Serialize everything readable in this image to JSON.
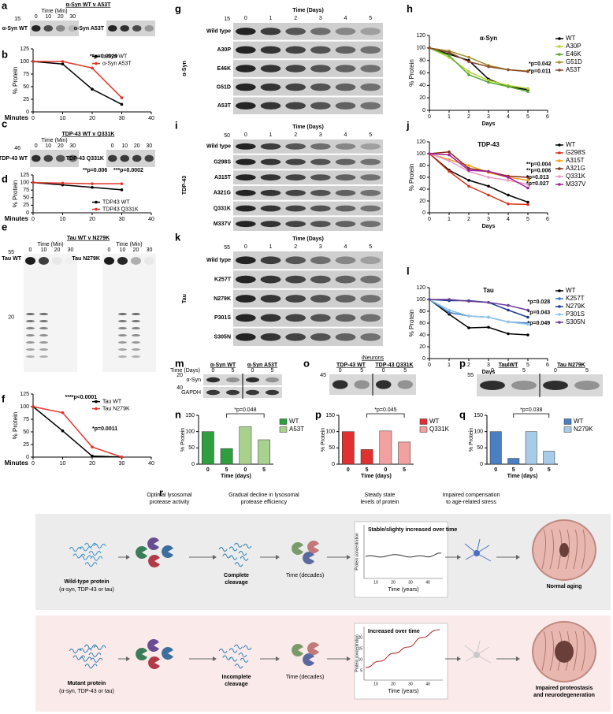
{
  "chart_data": [
    {
      "letter": "b",
      "type": "line",
      "x": [
        0,
        10,
        20,
        30
      ],
      "xlim": [
        0,
        40
      ],
      "xticks": [
        0,
        10,
        20,
        30,
        40
      ],
      "ylim": [
        0,
        125
      ],
      "yticks": [
        0,
        25,
        50,
        75,
        100,
        125
      ],
      "ylabel": "% Protein",
      "xlabel": "Minutes",
      "legend": "upper right",
      "series": [
        {
          "name": "α-Syn WT",
          "color": "#000000",
          "values": [
            100,
            95,
            45,
            15
          ]
        },
        {
          "name": "α-Syn A53T",
          "color": "#e0342a",
          "values": [
            100,
            100,
            87,
            28
          ]
        }
      ],
      "annotations": [
        {
          "text": "**p=0.0029"
        }
      ]
    },
    {
      "letter": "d",
      "type": "line",
      "x": [
        0,
        10,
        20,
        30
      ],
      "xlim": [
        0,
        40
      ],
      "xticks": [
        0,
        10,
        20,
        30,
        40
      ],
      "ylim": [
        0,
        125
      ],
      "yticks": [
        0,
        25,
        50,
        75,
        100,
        125
      ],
      "ylabel": "% Protein",
      "xlabel": "Minutes",
      "legend": "lower right",
      "series": [
        {
          "name": "TDP43 WT",
          "color": "#000000",
          "values": [
            100,
            92,
            84,
            76
          ]
        },
        {
          "name": "TDP43 Q331K",
          "color": "#e0342a",
          "values": [
            100,
            98,
            96,
            96
          ]
        }
      ],
      "annotations": [
        {
          "text": "**p=0.006"
        },
        {
          "text": "***p=0.0002"
        }
      ]
    },
    {
      "letter": "f",
      "type": "line",
      "x": [
        0,
        10,
        20,
        30
      ],
      "xlim": [
        0,
        40
      ],
      "xticks": [
        0,
        10,
        20,
        30,
        40
      ],
      "ylim": [
        0,
        125
      ],
      "yticks": [
        0,
        25,
        50,
        75,
        100,
        125
      ],
      "ylabel": "% Protein",
      "xlabel": "Minutes",
      "legend": "upper right",
      "series": [
        {
          "name": "Tau WT",
          "color": "#000000",
          "values": [
            100,
            52,
            2,
            0
          ]
        },
        {
          "name": "Tau N279K",
          "color": "#e0342a",
          "values": [
            100,
            88,
            20,
            0
          ]
        }
      ],
      "annotations": [
        {
          "text": "****p<0.0001"
        },
        {
          "text": "*p=0.0011"
        }
      ]
    },
    {
      "letter": "h",
      "type": "line",
      "title": "α-Syn",
      "x": [
        0,
        1,
        2,
        3,
        4,
        5
      ],
      "xlim": [
        0,
        6
      ],
      "xticks": [
        0,
        1,
        2,
        3,
        4,
        5,
        6
      ],
      "ylim": [
        0,
        120
      ],
      "yticks": [
        0,
        20,
        40,
        60,
        80,
        100,
        120
      ],
      "ylabel": "% Protein",
      "xlabel": "Days",
      "legend": "right",
      "series": [
        {
          "name": "WT",
          "color": "#000000",
          "values": [
            100,
            90,
            80,
            50,
            38,
            33
          ]
        },
        {
          "name": "A30P",
          "color": "#b5d334",
          "values": [
            100,
            85,
            62,
            48,
            40,
            35
          ]
        },
        {
          "name": "E46K",
          "color": "#5aa832",
          "values": [
            100,
            88,
            57,
            45,
            38,
            30
          ]
        },
        {
          "name": "G51D",
          "color": "#a58d2c",
          "values": [
            100,
            95,
            85,
            72,
            65,
            63
          ]
        },
        {
          "name": "A53T",
          "color": "#8b4a2b",
          "values": [
            100,
            93,
            78,
            70,
            65,
            62
          ]
        }
      ],
      "annotations": [
        {
          "text": "*p=0.042",
          "color": "#b5b000"
        },
        {
          "text": "*p=0.011",
          "color": "#c0702a"
        }
      ]
    },
    {
      "letter": "j",
      "type": "line",
      "title": "TDP-43",
      "x": [
        0,
        1,
        2,
        3,
        4,
        5
      ],
      "xlim": [
        0,
        6
      ],
      "xticks": [
        0,
        1,
        2,
        3,
        4,
        5,
        6
      ],
      "ylim": [
        0,
        120
      ],
      "yticks": [
        0,
        20,
        40,
        60,
        80,
        100,
        120
      ],
      "ylabel": "% Protein",
      "xlabel": "Days",
      "legend": "right",
      "series": [
        {
          "name": "WT",
          "color": "#000000",
          "values": [
            100,
            72,
            55,
            45,
            30,
            18
          ]
        },
        {
          "name": "G298S",
          "color": "#d9341c",
          "values": [
            100,
            70,
            45,
            30,
            15,
            14
          ]
        },
        {
          "name": "A315T",
          "color": "#f4a21f",
          "values": [
            100,
            90,
            80,
            68,
            60,
            55
          ]
        },
        {
          "name": "A321G",
          "color": "#8b2a1a",
          "values": [
            100,
            103,
            75,
            70,
            62,
            60
          ]
        },
        {
          "name": "Q331K",
          "color": "#e79bc5",
          "values": [
            100,
            88,
            70,
            60,
            55,
            48
          ]
        },
        {
          "name": "M337V",
          "color": "#a020a0",
          "values": [
            100,
            98,
            72,
            70,
            60,
            42
          ]
        }
      ],
      "annotations": [
        {
          "text": "**p=0.004",
          "color": "#8b2a1a"
        },
        {
          "text": "**p=0.006",
          "color": "#f4a21f"
        },
        {
          "text": "*p=0.013",
          "color": "#e079b5"
        },
        {
          "text": "*p=0.027",
          "color": "#a020a0"
        }
      ]
    },
    {
      "letter": "l",
      "type": "line",
      "title": "Tau",
      "x": [
        0,
        1,
        2,
        3,
        4,
        5
      ],
      "xlim": [
        0,
        6
      ],
      "xticks": [
        0,
        1,
        2,
        3,
        4,
        5,
        6
      ],
      "ylim": [
        0,
        120
      ],
      "yticks": [
        0,
        20,
        40,
        60,
        80,
        100,
        120
      ],
      "ylabel": "% Protein",
      "xlabel": "Days",
      "legend": "right",
      "series": [
        {
          "name": "WT",
          "color": "#000000",
          "values": [
            100,
            75,
            52,
            53,
            42,
            40
          ]
        },
        {
          "name": "K257T",
          "color": "#3c78c8",
          "values": [
            100,
            78,
            72,
            70,
            62,
            60
          ]
        },
        {
          "name": "N279K",
          "color": "#1f3a8a",
          "values": [
            100,
            98,
            98,
            95,
            82,
            70
          ]
        },
        {
          "name": "P301S",
          "color": "#8fc4e8",
          "values": [
            100,
            82,
            72,
            70,
            62,
            58
          ]
        },
        {
          "name": "S305N",
          "color": "#6a3d9a",
          "values": [
            100,
            100,
            97,
            95,
            90,
            82
          ]
        }
      ],
      "annotations": [
        {
          "text": "*p=0.028",
          "color": "#6a3d9a"
        },
        {
          "text": "*p=0.043",
          "color": "#1f3a8a"
        },
        {
          "text": "*p=0.049",
          "color": "#3c78c8"
        }
      ]
    },
    {
      "letter": "n",
      "type": "bar",
      "categories": [
        "0",
        "5",
        "0",
        "5"
      ],
      "ylim": [
        0,
        150
      ],
      "yticks": [
        0,
        50,
        100,
        150
      ],
      "ylabel": "% Protein",
      "xlabel": "Time (days)",
      "series": [
        {
          "name": "WT",
          "color": "#2e9e3e",
          "values": [
            100,
            48,
            null,
            null
          ]
        },
        {
          "name": "A53T",
          "color": "#a9d18e",
          "values": [
            null,
            null,
            115,
            75
          ]
        }
      ],
      "annotations": [
        {
          "text": "*p=0.048"
        }
      ]
    },
    {
      "letter": "p",
      "type": "bar",
      "categories": [
        "0",
        "5",
        "0",
        "5"
      ],
      "ylim": [
        0,
        150
      ],
      "yticks": [
        0,
        50,
        100,
        150
      ],
      "ylabel": "% Protein",
      "xlabel": "Time (days)",
      "series": [
        {
          "name": "WT",
          "color": "#e03030",
          "values": [
            100,
            45,
            null,
            null
          ]
        },
        {
          "name": "Q331K",
          "color": "#f2a0a0",
          "values": [
            null,
            null,
            102,
            68
          ]
        }
      ],
      "annotations": [
        {
          "text": "*p=0.045"
        }
      ]
    },
    {
      "letter": "q",
      "type": "bar",
      "categories": [
        "0",
        "5",
        "0",
        "5"
      ],
      "ylim": [
        0,
        150
      ],
      "yticks": [
        0,
        50,
        100,
        150
      ],
      "ylabel": "% Protein",
      "xlabel": "Time (days)",
      "series": [
        {
          "name": "WT",
          "color": "#4a7fc1",
          "values": [
            100,
            18,
            null,
            null
          ]
        },
        {
          "name": "N279K",
          "color": "#a8cce8",
          "values": [
            null,
            null,
            100,
            40
          ]
        }
      ],
      "annotations": [
        {
          "text": "*p=0.038"
        }
      ]
    }
  ],
  "blots": [
    {
      "letter": "a",
      "title": "α-Syn WT v A53T",
      "mw": [
        "15"
      ],
      "panels": [
        {
          "label": "α-Syn WT",
          "time_label": "Time (Min)",
          "lanes": [
            "0",
            "10",
            "20",
            "30"
          ]
        },
        {
          "label": "α-Syn A53T"
        }
      ]
    },
    {
      "letter": "c",
      "title": "TDP-43 WT v Q331K",
      "mw": [
        "46"
      ],
      "panels": [
        {
          "label": "TDP-43 WT",
          "time_label": "Time (Min)",
          "lanes": [
            "0",
            "10",
            "20",
            "30"
          ]
        },
        {
          "label": "TDP-43 Q331K",
          "lanes": [
            "0",
            "10",
            "20",
            "30"
          ]
        }
      ]
    },
    {
      "letter": "e",
      "title": "Tau WT v N279K",
      "mw": [
        "55",
        "20"
      ],
      "panels": [
        {
          "label": "Tau WT",
          "time_label": "Time (Min)",
          "lanes": [
            "0",
            "10",
            "20",
            "30"
          ]
        },
        {
          "label": "Tau N279K",
          "time_label": "Time (Min)",
          "lanes": [
            "0",
            "10",
            "20",
            "30"
          ]
        }
      ]
    },
    {
      "letter": "g",
      "time_label": "Time (Days)",
      "lanes": [
        "0",
        "1",
        "2",
        "3",
        "4",
        "5"
      ],
      "mw": [
        "15"
      ],
      "side_label": "α-Syn",
      "rows": [
        "Wild type",
        "A30P",
        "E46K",
        "G51D",
        "A53T"
      ]
    },
    {
      "letter": "i",
      "time_label": "Time (Days)",
      "lanes": [
        "0",
        "1",
        "2",
        "3",
        "4",
        "5"
      ],
      "mw": [
        "50"
      ],
      "side_label": "TDP-43",
      "rows": [
        "Wild type",
        "G298S",
        "A315T",
        "A321G",
        "Q331K",
        "M337V"
      ]
    },
    {
      "letter": "k",
      "time_label": "Time (Days)",
      "lanes": [
        "0",
        "1",
        "2",
        "3",
        "4",
        "5"
      ],
      "mw": [
        "55"
      ],
      "side_label": "Tau",
      "rows": [
        "Wild type",
        "K257T",
        "N279K",
        "P301S",
        "S305N"
      ]
    },
    {
      "letter": "m",
      "time_label": "Time (Days)",
      "groups": [
        "α-Syn WT",
        "α-Syn A53T"
      ],
      "lanes": [
        "0",
        "5",
        "0",
        "5"
      ],
      "rows": [
        "α-Syn",
        "GAPDH"
      ],
      "mw": [
        "20",
        "40"
      ]
    },
    {
      "letter": "o",
      "header": "iNeurons",
      "groups": [
        "TDP-43 WT",
        "TDP-43 Q331K"
      ],
      "lanes": [
        "0",
        "5",
        "0",
        "5"
      ],
      "mw": [
        "45"
      ]
    },
    {
      "letter": "p",
      "groups": [
        "Tau WT",
        "Tau N279K"
      ],
      "lanes": [
        "0",
        "5",
        "0",
        "5"
      ],
      "mw": [
        "55"
      ]
    }
  ],
  "diagram": {
    "letter": "r",
    "headers": [
      [
        "Optimal lysosomal",
        "protease activity"
      ],
      [
        "Gradual decline in lysosomal",
        "protease efficiency"
      ],
      [
        "Steady state",
        "levels of protein"
      ],
      [
        "Impaired compensation",
        "to age-related stress"
      ]
    ],
    "rows": [
      {
        "protein": "Wild-type protein",
        "protein_note": "(α-syn, TDP-43 or tau)",
        "cleavage": [
          "Complete",
          "cleavage"
        ],
        "time": "Time (decades)",
        "inset_title": "Stable/slighty increased over time",
        "inset_ylabel": "Protein concentration",
        "inset_xlabel": "Time (years)",
        "inset_xticks": [
          "10",
          "20",
          "30",
          "40"
        ],
        "outcome": [
          "Normal aging"
        ]
      },
      {
        "protein": "Mutant protein",
        "protein_note": "(α-syn, TDP-43 or tau)",
        "cleavage": [
          "Incomplete",
          "cleavage"
        ],
        "time": "Time (decades)",
        "inset_title": "Increased over time",
        "inset_ylabel": "Protein concentration",
        "inset_xlabel": "Time (years)",
        "inset_xticks": [
          "10",
          "20",
          "30",
          "40"
        ],
        "inset_yticks": [
          "5",
          "10",
          "15",
          "20"
        ],
        "outcome": [
          "Impaired proteostasis",
          "and neurodegeneration"
        ]
      }
    ]
  }
}
